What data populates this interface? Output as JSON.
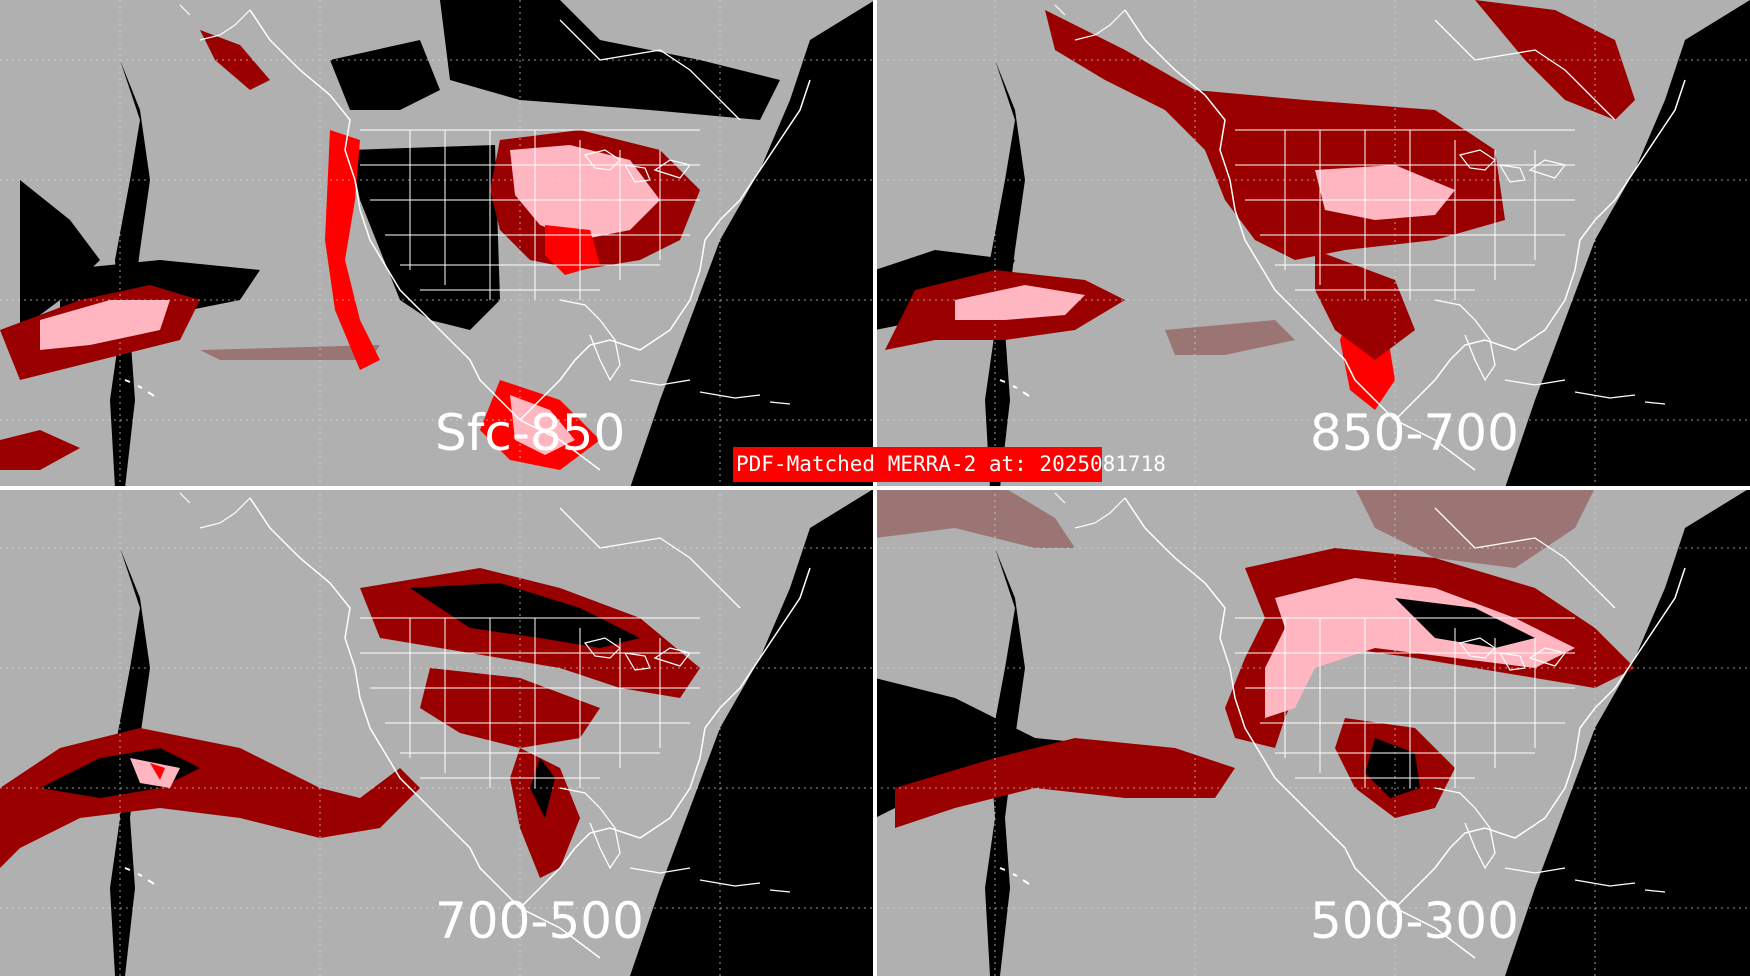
{
  "title": "PDF-Matched MERRA-2 at: 2025081718",
  "panels": [
    {
      "id": "sfc-850",
      "label": "Sfc-850"
    },
    {
      "id": "850-700",
      "label": "850-700"
    },
    {
      "id": "700-500",
      "label": "700-500"
    },
    {
      "id": "500-300",
      "label": "500-300"
    }
  ],
  "colors": {
    "background": "#b0b0b0",
    "no_data": "#000000",
    "dark_red": "#9a0000",
    "red": "#ff0000",
    "pink": "#ffb6c1",
    "brown_gray": "#9b7474",
    "map_lines": "#ffffff",
    "title_box": "#ff0000"
  }
}
